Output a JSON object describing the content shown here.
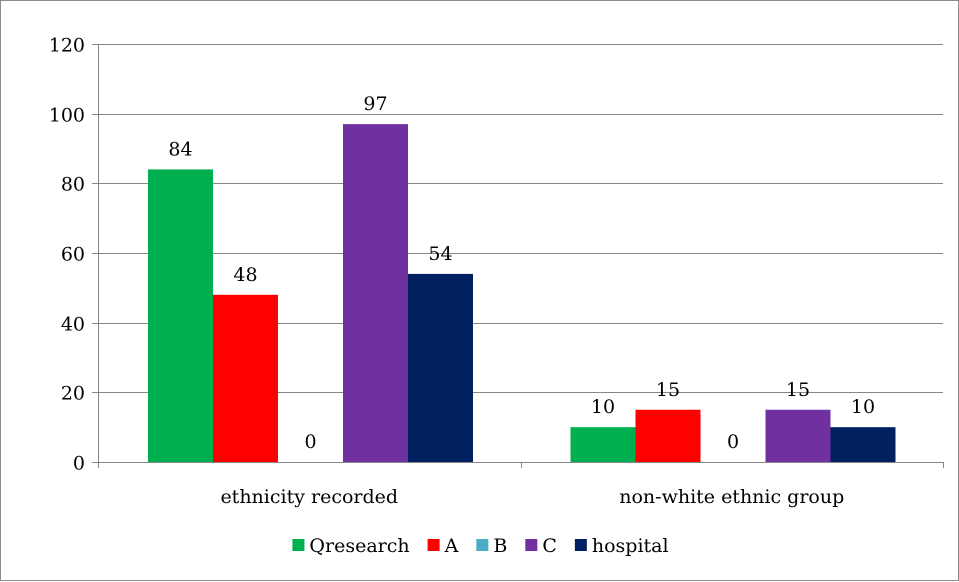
{
  "chart_data": {
    "type": "bar",
    "categories": [
      "ethnicity recorded",
      "non-white ethnic group"
    ],
    "series": [
      {
        "name": "Qresearch",
        "values": [
          84,
          10
        ],
        "labels": [
          "84",
          "10"
        ],
        "color": "#00b050"
      },
      {
        "name": "A",
        "values": [
          48,
          15
        ],
        "labels": [
          "48",
          "15"
        ],
        "color": "#ff0000"
      },
      {
        "name": "B",
        "values": [
          0,
          0
        ],
        "labels": [
          "0",
          "0"
        ],
        "color": "#4bacc6"
      },
      {
        "name": "C",
        "values": [
          97,
          15
        ],
        "labels": [
          "97",
          "15"
        ],
        "color": "#7030a0"
      },
      {
        "name": "hospital",
        "values": [
          54,
          10
        ],
        "labels": [
          "54",
          "10"
        ],
        "color": "#002060"
      }
    ],
    "title": "",
    "xlabel": "",
    "ylabel": "",
    "ylim": [
      0,
      120
    ],
    "yticks": [
      "0",
      "20",
      "40",
      "60",
      "80",
      "100",
      "120"
    ],
    "grid": true,
    "legend_position": "bottom",
    "gridline_color": "#868686"
  }
}
